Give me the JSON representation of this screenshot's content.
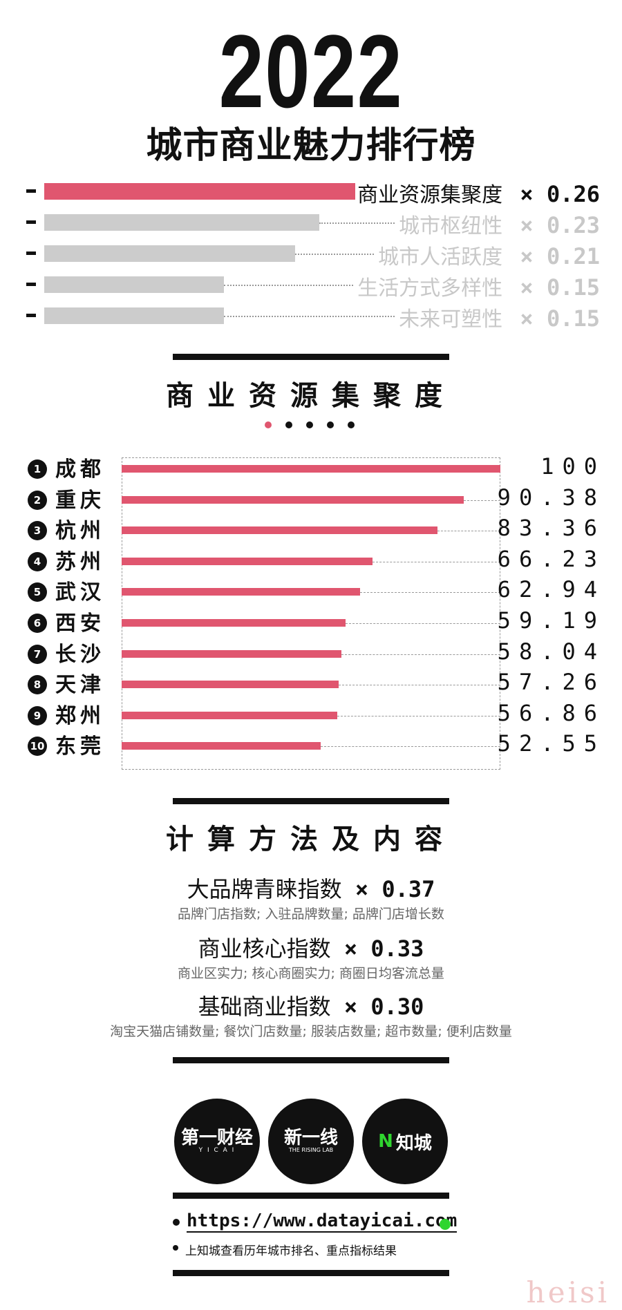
{
  "header": {
    "year": "2022",
    "subtitle": "城市商业魅力排行榜"
  },
  "weights": [
    {
      "label": "商业资源集聚度",
      "weight": "× 0.26",
      "value": 0.26,
      "active": true
    },
    {
      "label": "城市枢纽性",
      "weight": "× 0.23",
      "value": 0.23,
      "active": false
    },
    {
      "label": "城市人活跃度",
      "weight": "× 0.21",
      "value": 0.21,
      "active": false
    },
    {
      "label": "生活方式多样性",
      "weight": "× 0.15",
      "value": 0.15,
      "active": false
    },
    {
      "label": "未来可塑性",
      "weight": "× 0.15",
      "value": 0.15,
      "active": false
    }
  ],
  "section1": {
    "title": "商业资源集聚度"
  },
  "chart_data": {
    "type": "bar",
    "title": "商业资源集聚度",
    "categories": [
      "成都",
      "重庆",
      "杭州",
      "苏州",
      "武汉",
      "西安",
      "长沙",
      "天津",
      "郑州",
      "东莞"
    ],
    "ranks": [
      "1",
      "2",
      "3",
      "4",
      "5",
      "6",
      "7",
      "8",
      "9",
      "10"
    ],
    "values": [
      100,
      90.38,
      83.36,
      66.23,
      62.94,
      59.19,
      58.04,
      57.26,
      56.86,
      52.55
    ],
    "value_labels": [
      "100",
      "90.38",
      "83.36",
      "66.23",
      "62.94",
      "59.19",
      "58.04",
      "57.26",
      "56.86",
      "52.55"
    ],
    "xlim": [
      0,
      100
    ],
    "orientation": "horizontal",
    "grid": false
  },
  "section2": {
    "title": "计算方法及内容"
  },
  "methods": [
    {
      "name": "大品牌青睐指数",
      "weight": "× 0.37",
      "desc": "品牌门店指数; 入驻品牌数量; 品牌门店增长数"
    },
    {
      "name": "商业核心指数",
      "weight": "× 0.33",
      "desc": "商业区实力; 核心商圈实力; 商圈日均客流总量"
    },
    {
      "name": "基础商业指数",
      "weight": "× 0.30",
      "desc": "淘宝天猫店铺数量; 餐饮门店数量; 服装店数量; 超市数量; 便利店数量"
    }
  ],
  "logos": [
    {
      "text": "第一财经",
      "sub": "Y I C A I"
    },
    {
      "text": "新一线",
      "sub": "THE RISING LAB"
    },
    {
      "text": "知城",
      "sub": ""
    }
  ],
  "footer": {
    "url": "https://www.datayicai.com",
    "note": "上知城查看历年城市排名、重点指标结果"
  },
  "watermark": "heisi",
  "colors": {
    "accent": "#e0566f",
    "inactive": "#cccccc",
    "inactive_text": "#c8c8c8",
    "green": "#2fd52f"
  }
}
